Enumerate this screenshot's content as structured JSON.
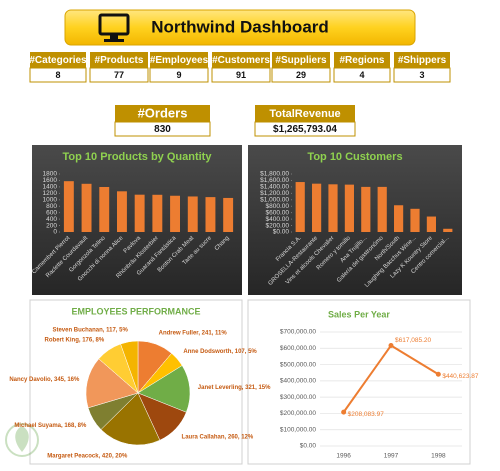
{
  "title": "Northwind Dashboard",
  "kpis": [
    {
      "label": "#Categories",
      "value": 8
    },
    {
      "label": "#Products",
      "value": 77
    },
    {
      "label": "#Employees",
      "value": 9
    },
    {
      "label": "#Customers",
      "value": 91
    },
    {
      "label": "#Suppliers",
      "value": 29
    },
    {
      "label": "#Regions",
      "value": 4
    },
    {
      "label": "#Shippers",
      "value": 3
    }
  ],
  "big_kpis": [
    {
      "label": "#Orders",
      "value": 830
    },
    {
      "label": "TotalRevenue",
      "value": "$1,265,793.04"
    }
  ],
  "chart_data": [
    {
      "type": "bar",
      "title": "Top 10 Products by Quantity",
      "categories": [
        "Camembert Pierrot",
        "Raclette Courdavault",
        "Gorgonzola Telino",
        "Gnocchi di nonna Alice",
        "Pavlova",
        "Rhönbräu Klosterbier",
        "Guaraná Fantástica",
        "Boston Crab Meat",
        "Tarte au sucre",
        "Chang"
      ],
      "values": [
        1577,
        1496,
        1397,
        1263,
        1158,
        1155,
        1125,
        1103,
        1083,
        1057
      ],
      "color": "#ed7d31",
      "ylim": [
        0,
        1800
      ],
      "yticks": [
        0,
        200,
        400,
        600,
        800,
        1000,
        1200,
        1400,
        1600,
        1800
      ]
    },
    {
      "type": "bar",
      "title": "Top 10 Customers",
      "categories": [
        "Francia S.A.",
        "GROSELLA-Restaurante",
        "Vins et alcools Chevalier",
        "Romero y tomillo",
        "Ana Trujillo...",
        "Galería del gastronómo",
        "North/South",
        "Laughing Bacchus Wine...",
        "Lazy K Kountry Store",
        "Centro comercial..."
      ],
      "values": [
        1550,
        1500,
        1480,
        1470,
        1400,
        1400,
        830,
        720,
        480,
        100
      ],
      "color": "#ed7d31",
      "ylim": [
        0,
        1800
      ],
      "yticks": [
        {
          "value": 0,
          "label": "$0.00"
        },
        {
          "value": 200,
          "label": "$200.00"
        },
        {
          "value": 400,
          "label": "$400.00"
        },
        {
          "value": 600,
          "label": "$600.00"
        },
        {
          "value": 800,
          "label": "$800.00"
        },
        {
          "value": 1000,
          "label": "$1,000.00"
        },
        {
          "value": 1200,
          "label": "$1,200.00"
        },
        {
          "value": 1400,
          "label": "$1,400.00"
        },
        {
          "value": 1600,
          "label": "$1,600.00"
        },
        {
          "value": 1800,
          "label": "$1,800.00"
        }
      ]
    },
    {
      "type": "pie",
      "title": "EMPLOYEES PERFORMANCE",
      "categories": [
        "Andrew Fuller",
        "Anne Dodsworth",
        "Janet Leverling",
        "Laura Callahan",
        "Margaret Peacock",
        "Michael Suyama",
        "Nancy Davolio",
        "Robert King",
        "Steven Buchanan"
      ],
      "values": [
        241,
        107,
        321,
        260,
        420,
        168,
        345,
        176,
        117
      ],
      "value_labels": [
        "Andrew Fuller, 241, 11%",
        "Anne Dodsworth, 107, 5%",
        "Janet Leverling, 321, 15%",
        "Laura Callahan, 260, 12%",
        "Margaret Peacock, 420, 20%",
        "Michael Suyama, 168, 8%",
        "Nancy Davolio, 345, 16%",
        "Robert King, 176, 8%",
        "Steven Buchanan, 117, 5%"
      ],
      "colors": [
        "#ed7d31",
        "#ffc000",
        "#70ad47",
        "#9e480e",
        "#997300",
        "#7f7f30",
        "#f1975a",
        "#ffcd33",
        "#f4b400"
      ]
    },
    {
      "type": "line",
      "title": "Sales Per Year",
      "categories": [
        "1996",
        "1997",
        "1998"
      ],
      "series": [
        {
          "values": [
            208083.97,
            617085.2,
            440623.87
          ],
          "value_labels": [
            "$208,083.97",
            "$617,085.20",
            "$440,623.87"
          ],
          "color": "#ed7d31"
        }
      ],
      "ylim": [
        0,
        700000
      ],
      "yticks": [
        {
          "value": 0,
          "label": "$0.00"
        },
        {
          "value": 100000,
          "label": "$100,000.00"
        },
        {
          "value": 200000,
          "label": "$200,000.00"
        },
        {
          "value": 300000,
          "label": "$300,000.00"
        },
        {
          "value": 400000,
          "label": "$400,000.00"
        },
        {
          "value": 500000,
          "label": "$500,000.00"
        },
        {
          "value": 600000,
          "label": "$600,000.00"
        },
        {
          "value": 700000,
          "label": "$700,000.00"
        }
      ],
      "grid": true
    }
  ]
}
